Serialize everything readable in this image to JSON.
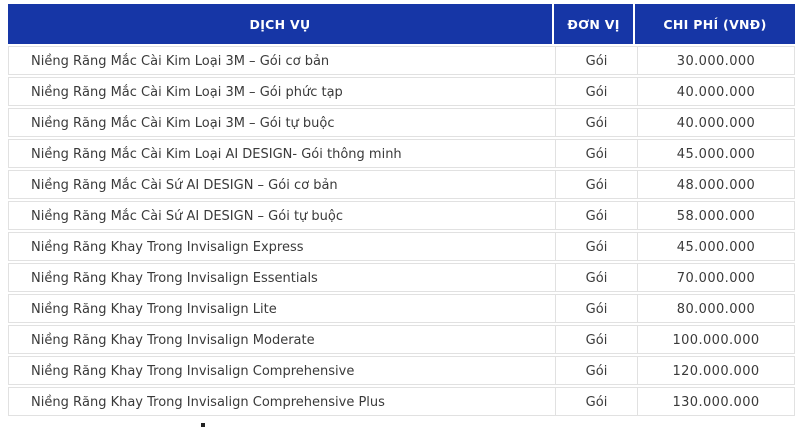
{
  "table": {
    "columns": [
      "DỊCH VỤ",
      "ĐƠN VỊ",
      "CHI PHÍ (VNĐ)"
    ],
    "rows": [
      {
        "service": "Niềng Răng Mắc Cài Kim Loại 3M – Gói cơ bản",
        "unit": "Gói",
        "price": "30.000.000"
      },
      {
        "service": "Niềng Răng Mắc Cài Kim Loại 3M – Gói phức tạp",
        "unit": "Gói",
        "price": "40.000.000"
      },
      {
        "service": "Niềng Răng Mắc Cài Kim Loại 3M – Gói tự buộc",
        "unit": "Gói",
        "price": "40.000.000"
      },
      {
        "service": "Niềng Răng Mắc Cài Kim Loại AI DESIGN- Gói thông minh",
        "unit": "Gói",
        "price": "45.000.000"
      },
      {
        "service": "Niềng Răng Mắc Cài Sứ AI DESIGN – Gói cơ bản",
        "unit": "Gói",
        "price": "48.000.000"
      },
      {
        "service": "Niềng Răng Mắc Cài Sứ AI DESIGN – Gói tự buộc",
        "unit": "Gói",
        "price": "58.000.000"
      },
      {
        "service": "Niềng Răng Khay Trong Invisalign Express",
        "unit": "Gói",
        "price": "45.000.000"
      },
      {
        "service": "Niềng Răng Khay Trong Invisalign Essentials",
        "unit": "Gói",
        "price": "70.000.000"
      },
      {
        "service": "Niềng Răng Khay Trong Invisalign Lite",
        "unit": "Gói",
        "price": "80.000.000"
      },
      {
        "service": "Niềng Răng Khay Trong Invisalign Moderate",
        "unit": "Gói",
        "price": "100.000.000"
      },
      {
        "service": "Niềng Răng Khay Trong Invisalign Comprehensive",
        "unit": "Gói",
        "price": "120.000.000"
      },
      {
        "service": "Niềng Răng Khay Trong Invisalign Comprehensive Plus",
        "unit": "Gói",
        "price": "130.000.000"
      }
    ]
  },
  "colors": {
    "header_bg": "#1636a6",
    "header_text": "#ffffff",
    "row_border": "#e1e1e1",
    "body_text": "#3a3a3a"
  }
}
